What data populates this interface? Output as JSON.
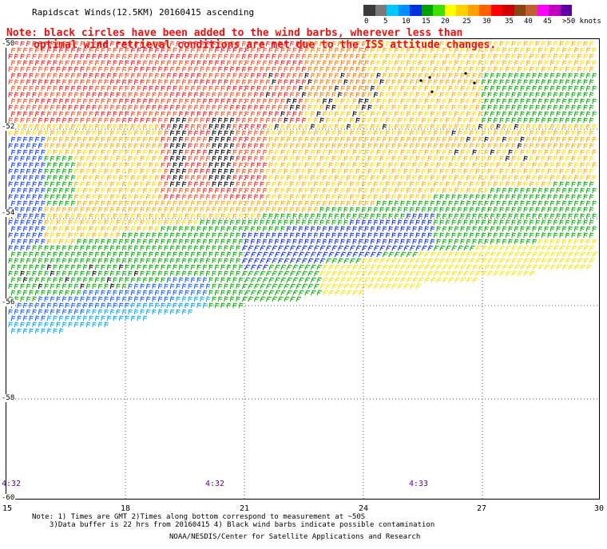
{
  "title": "Rapidscat Winds(12.5KM) 20160415 ascending",
  "note_line1": "Note: black circles have been added to the wind barbs, wherever less than",
  "note_line2": "optimal wind retrieval conditions are met due to the ISS attitude changes.",
  "legend": {
    "labels": [
      "0",
      "5",
      "10",
      "15",
      "20",
      "25",
      "30",
      "35",
      "40",
      "45",
      ">50 knots"
    ],
    "colors": [
      "#3a3a3a",
      "#7a7a7a",
      "#00c8ff",
      "#0090ff",
      "#0030e0",
      "#00a000",
      "#40e000",
      "#ffff00",
      "#ffd000",
      "#ffa000",
      "#ff6000",
      "#ff0000",
      "#d00000",
      "#8b4513",
      "#c06030",
      "#ff00ff",
      "#c000c0",
      "#6000a0"
    ]
  },
  "lat_labels": [
    "-50",
    "-52",
    "-54",
    "-56",
    "-58",
    "-60"
  ],
  "lon_labels": [
    "15",
    "18",
    "21",
    "24",
    "27",
    "30"
  ],
  "times": [
    "4:32",
    "4:32",
    "4:33"
  ],
  "footer_line1": "Note: 1) Times are GMT 2)Times along bottom correspond to measurement at ~50S",
  "footer_line2": "3)Data buffer is 22 hrs from 20160415 4) Black wind barbs indicate possible contamination",
  "footer_line3": "NOAA/NESDIS/Center for Satellite Applications and Research"
}
